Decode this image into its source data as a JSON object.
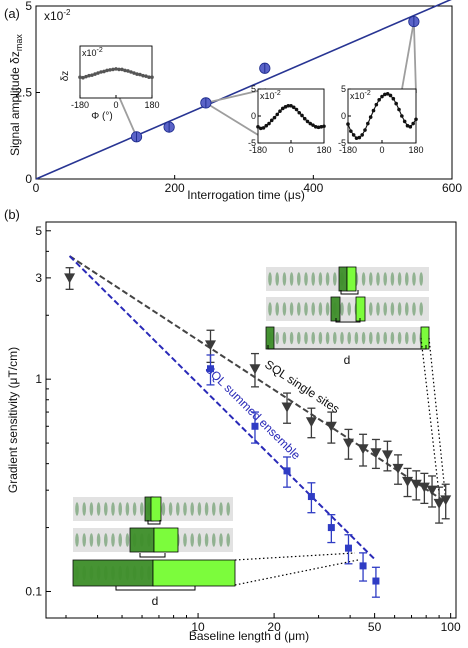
{
  "chart_data": [
    {
      "panel": "(a)",
      "type": "scatter",
      "xlabel": "Interrogation time (μs)",
      "ylabel": "Signal amplitude δz",
      "ylabel_sub": "max",
      "multiplier": "x10",
      "multiplier_exp": "-2",
      "xlim": [
        0,
        600
      ],
      "ylim": [
        0,
        5
      ],
      "xticks": [
        "0",
        "200",
        "400",
        "600"
      ],
      "yticks": [
        "0",
        "2.5",
        "5"
      ],
      "fit_line": {
        "x": [
          0,
          600
        ],
        "y": [
          0,
          5.2
        ]
      },
      "series": [
        {
          "x": [
            145,
            192,
            245,
            330,
            545
          ],
          "y": [
            1.22,
            1.5,
            2.2,
            3.2,
            4.55
          ]
        }
      ],
      "insets": [
        {
          "xlabel": "Φ (°)",
          "ylabel": "δz",
          "multiplier": "x10",
          "multiplier_exp": "-2",
          "xticks": [
            "-180",
            "0",
            "180"
          ],
          "xlim": [
            -180,
            180
          ],
          "ylim": [
            -5,
            5
          ],
          "x": [
            -180,
            -165,
            -150,
            -135,
            -120,
            -105,
            -90,
            -75,
            -60,
            -45,
            -30,
            -15,
            0,
            15,
            30,
            45,
            60,
            75,
            90,
            105,
            120,
            135,
            150,
            165,
            180
          ],
          "y": [
            -1.0,
            -1.1,
            -0.9,
            -0.7,
            -0.6,
            -0.4,
            -0.2,
            0.0,
            0.1,
            0.3,
            0.4,
            0.5,
            0.6,
            0.5,
            0.5,
            0.3,
            0.2,
            0.0,
            -0.2,
            -0.4,
            -0.5,
            -0.7,
            -0.8,
            -1.0,
            -1.0
          ]
        },
        {
          "xlabel": "",
          "ylabel": "",
          "multiplier": "x10",
          "multiplier_exp": "-2",
          "xticks": [
            "-180",
            "0",
            "180"
          ],
          "yticks": [
            "5",
            "0",
            "-5"
          ],
          "xlim": [
            -180,
            180
          ],
          "ylim": [
            -5,
            5
          ],
          "x": [
            -180,
            -165,
            -150,
            -135,
            -120,
            -105,
            -90,
            -75,
            -60,
            -45,
            -30,
            -15,
            0,
            15,
            30,
            45,
            60,
            75,
            90,
            105,
            120,
            135,
            150,
            165,
            180
          ],
          "y": [
            -2.0,
            -2.3,
            -2.2,
            -1.8,
            -1.4,
            -0.8,
            -0.3,
            0.3,
            0.9,
            1.4,
            1.7,
            1.9,
            1.9,
            1.6,
            1.2,
            0.6,
            0.1,
            -0.5,
            -1.0,
            -1.4,
            -1.7,
            -2.0,
            -2.1,
            -2.0,
            -1.9
          ]
        },
        {
          "xlabel": "",
          "ylabel": "",
          "multiplier": "x10",
          "multiplier_exp": "-2",
          "xticks": [
            "-180",
            "0",
            "180"
          ],
          "yticks": [
            "5",
            "0",
            "-5"
          ],
          "xlim": [
            -180,
            180
          ],
          "ylim": [
            -5,
            5
          ],
          "x": [
            -180,
            -165,
            -150,
            -135,
            -120,
            -105,
            -90,
            -75,
            -60,
            -45,
            -30,
            -15,
            0,
            15,
            30,
            45,
            60,
            75,
            90,
            105,
            120,
            135,
            150,
            165,
            180
          ],
          "y": [
            -1.5,
            -2.8,
            -3.5,
            -4.1,
            -4.0,
            -3.5,
            -2.6,
            -1.4,
            -0.2,
            1.0,
            2.1,
            3.0,
            3.6,
            4.0,
            4.1,
            3.8,
            3.2,
            2.3,
            1.2,
            0.0,
            -1.0,
            -1.8,
            -2.0,
            -1.4,
            -0.6
          ]
        }
      ]
    },
    {
      "panel": "(b)",
      "type": "scatter",
      "xscale": "log",
      "yscale": "log",
      "xlabel": "Baseline length d (μm)",
      "ylabel": "Gradient sensitivity (μT/cm)",
      "xlim": [
        2.5,
        105
      ],
      "ylim": [
        0.075,
        5.5
      ],
      "xticks": [
        "10",
        "20",
        "50",
        "100"
      ],
      "yticks": [
        "5",
        "3",
        "1",
        "0.1"
      ],
      "series": [
        {
          "marker": "triangle",
          "x": [
            3.1,
            11.2,
            16.8,
            22.5,
            28.1,
            33.7,
            39.4,
            45.0,
            50.6,
            56.2,
            61.9,
            67.5,
            73.1,
            78.7,
            84.4,
            90.0,
            95.6
          ],
          "y": [
            3.0,
            1.45,
            1.12,
            0.74,
            0.63,
            0.6,
            0.5,
            0.47,
            0.45,
            0.44,
            0.38,
            0.33,
            0.32,
            0.31,
            0.3,
            0.26,
            0.27
          ],
          "err": [
            0.35,
            0.25,
            0.2,
            0.12,
            0.1,
            0.1,
            0.08,
            0.08,
            0.07,
            0.07,
            0.06,
            0.05,
            0.05,
            0.05,
            0.05,
            0.05,
            0.05
          ]
        },
        {
          "marker": "square",
          "x": [
            11.2,
            16.8,
            22.5,
            28.1,
            33.7,
            39.4,
            45.0,
            50.6
          ],
          "y": [
            1.12,
            0.6,
            0.37,
            0.28,
            0.2,
            0.16,
            0.132,
            0.112
          ],
          "err": [
            0.18,
            0.1,
            0.06,
            0.045,
            0.03,
            0.025,
            0.02,
            0.018
          ]
        }
      ],
      "reference_lines": [
        {
          "label": "SQL single sites",
          "color": "#444444",
          "x": [
            3.1,
            95
          ],
          "y": [
            3.8,
            0.265
          ]
        },
        {
          "label": "SQL summed ensemble",
          "color": "#2a2ab8",
          "x": [
            3.1,
            50.6
          ],
          "y": [
            3.8,
            0.14
          ]
        }
      ],
      "image_label": "d"
    }
  ],
  "colors": {
    "marker_blue": "#5a63c8",
    "fit_line": "#283593",
    "inset_leader": "#9e9e9e",
    "triangles": "#3b3b3b",
    "squares": "#2f3cc4",
    "sql_single": "#444444",
    "sql_summed": "#2a2ab8",
    "light_green": "#7cfc3c",
    "dark_green": "#3e8f2a"
  }
}
